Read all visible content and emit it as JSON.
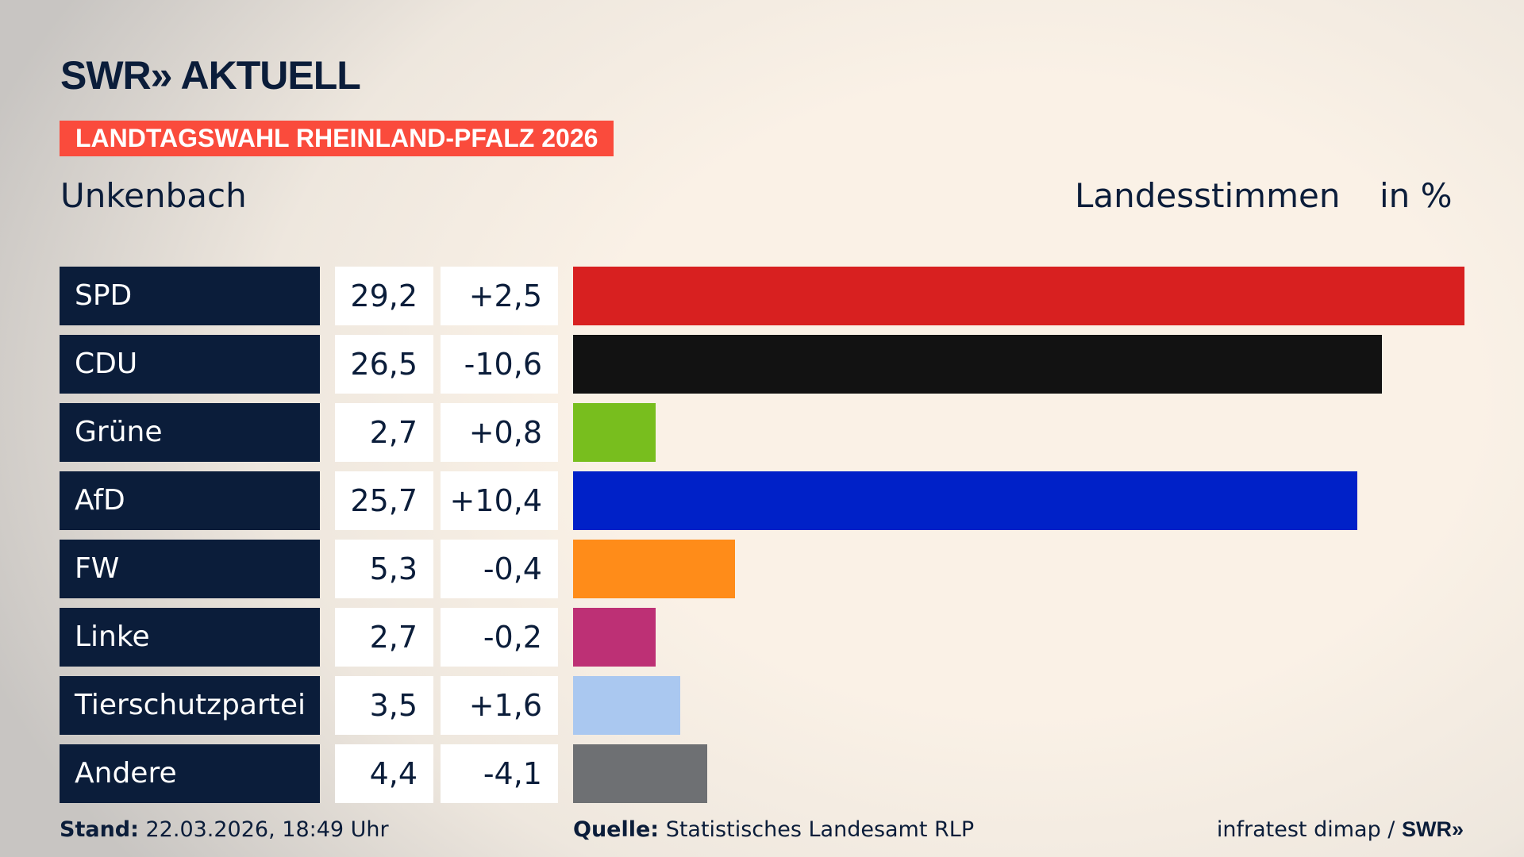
{
  "header": {
    "logo": "SWR» AKTUELL",
    "banner": "LANDTAGSWAHL RHEINLAND-PFALZ 2026",
    "place": "Unkenbach",
    "measure": "Landesstimmen",
    "unit": "in %"
  },
  "chart_data": {
    "type": "bar",
    "orientation": "horizontal",
    "xlim": [
      0,
      29.2
    ],
    "categories": [
      "SPD",
      "CDU",
      "Grüne",
      "AfD",
      "FW",
      "Linke",
      "Tierschutzpartei",
      "Andere"
    ],
    "values": [
      29.2,
      26.5,
      2.7,
      25.7,
      5.3,
      2.7,
      3.5,
      4.4
    ],
    "value_labels": [
      "29,2",
      "26,5",
      "2,7",
      "25,7",
      "5,3",
      "2,7",
      "3,5",
      "4,4"
    ],
    "change_labels": [
      "+2,5",
      "-10,6",
      "+0,8",
      "+10,4",
      "-0,4",
      "-0,2",
      "+1,6",
      "-4,1"
    ],
    "colors": [
      "#d82020",
      "#121212",
      "#78be1e",
      "#0021c8",
      "#ff8c19",
      "#bd3075",
      "#aac8f0",
      "#6e7073"
    ]
  },
  "footer": {
    "stand_label": "Stand:",
    "stand_value": " 22.03.2026, 18:49 Uhr",
    "source_label": "Quelle:",
    "source_value": " Statistisches Landesamt RLP",
    "credit": "infratest dimap / ",
    "credit_logo": "SWR»"
  }
}
